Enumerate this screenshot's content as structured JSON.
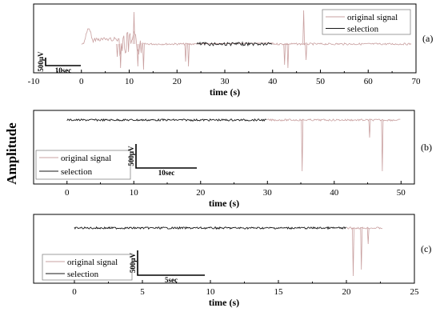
{
  "figure": {
    "ylabel": "Amplitude"
  },
  "chart_data": [
    {
      "type": "line",
      "panel_label": "(a)",
      "xlabel": "time (s)",
      "xlim": [
        -10,
        70
      ],
      "x_ticks": [
        -10,
        0,
        10,
        20,
        30,
        40,
        50,
        60,
        70
      ],
      "legend": [
        "original signal",
        "selection"
      ],
      "legend_position": "top-right",
      "scale_bar": {
        "amplitude": "500μV",
        "time": "10sec"
      },
      "selection_range": [
        24,
        40
      ],
      "signal_range": [
        0,
        69
      ],
      "colors": {
        "original": "#c9a0a0",
        "selection": "#1a1a1a"
      }
    },
    {
      "type": "line",
      "panel_label": "(b)",
      "xlabel": "time (s)",
      "xlim": [
        -5,
        52
      ],
      "x_ticks": [
        0,
        10,
        20,
        30,
        40,
        50
      ],
      "legend": [
        "original signal",
        "selection"
      ],
      "legend_position": "bottom-left",
      "scale_bar": {
        "amplitude": "500μV",
        "time": "10sec"
      },
      "selection_range": [
        0,
        30
      ],
      "signal_range": [
        0,
        50
      ],
      "colors": {
        "original": "#c9a0a0",
        "selection": "#1a1a1a"
      }
    },
    {
      "type": "line",
      "panel_label": "(c)",
      "xlabel": "time (s)",
      "xlim": [
        -3,
        25
      ],
      "x_ticks": [
        0,
        5,
        10,
        15,
        20,
        25
      ],
      "legend": [
        "original signal",
        "selection"
      ],
      "legend_position": "bottom-left",
      "scale_bar": {
        "amplitude": "500μV",
        "time": "5sec"
      },
      "selection_range": [
        0,
        20
      ],
      "signal_range": [
        0,
        22.7
      ],
      "colors": {
        "original": "#c9a0a0",
        "selection": "#1a1a1a"
      }
    }
  ]
}
